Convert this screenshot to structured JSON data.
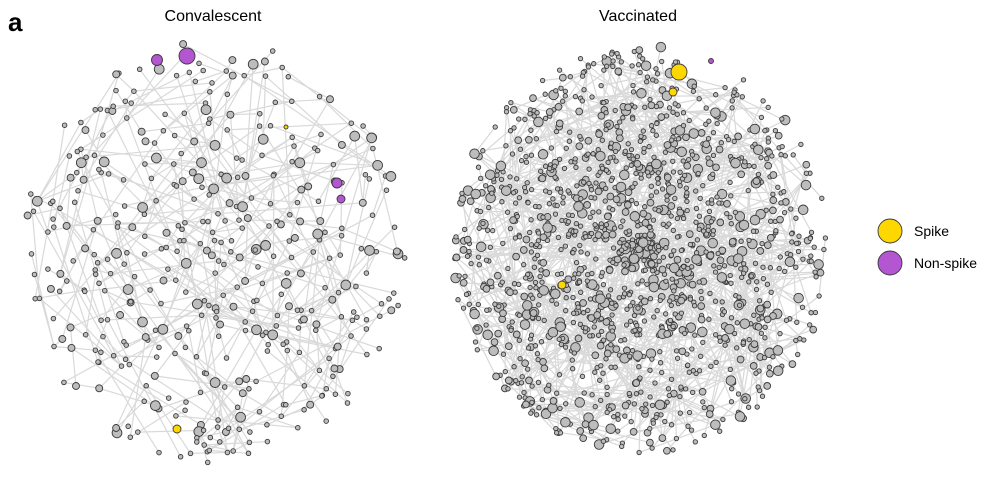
{
  "figure": {
    "panel_letter": "a",
    "colors": {
      "other": "#bdbdbd",
      "spike": "#ffd700",
      "non_spike": "#b455d1",
      "edge": "#d9d9d9",
      "outline": "#3a3a3a"
    },
    "panels": [
      {
        "title": "Convalescent",
        "density": "sparse"
      },
      {
        "title": "Vaccinated",
        "density": "dense"
      }
    ],
    "legend": {
      "items": [
        {
          "label": "Spike",
          "color": "#ffd700"
        },
        {
          "label": "Non-spike",
          "color": "#b455d1"
        }
      ]
    }
  }
}
